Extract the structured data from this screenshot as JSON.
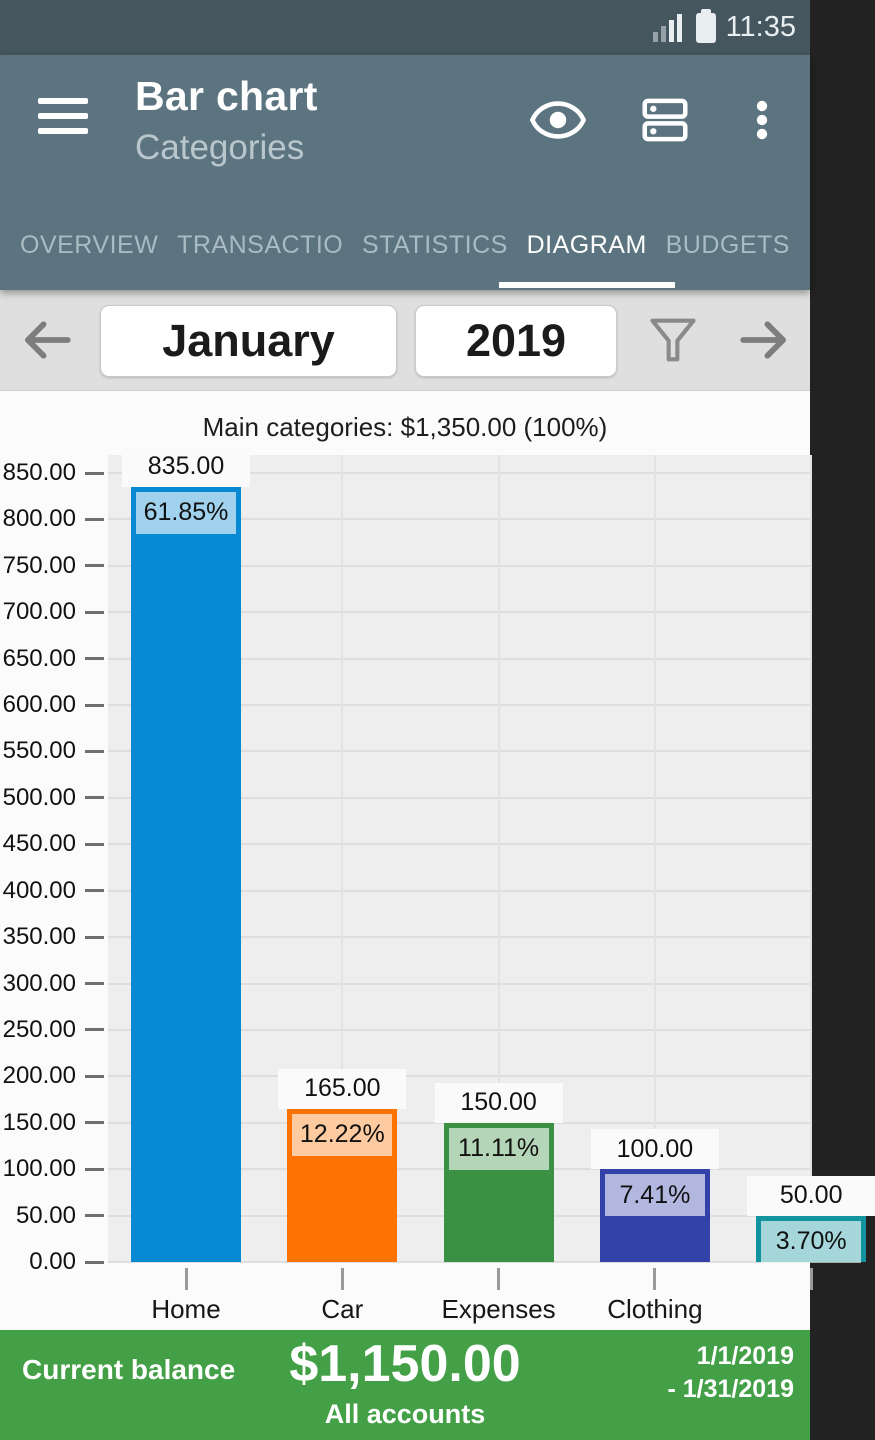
{
  "status_bar": {
    "time": "11:35"
  },
  "app_bar": {
    "title": "Bar chart",
    "subtitle": "Categories"
  },
  "icons": [
    "signal-icon",
    "battery-icon",
    "menu-icon",
    "eye-icon",
    "accounts-icon",
    "overflow-menu-icon",
    "prev-arrow-icon",
    "next-arrow-icon",
    "filter-icon"
  ],
  "tabs": [
    {
      "label": "OVERVIEW",
      "active": false
    },
    {
      "label": "TRANSACTIO",
      "active": false
    },
    {
      "label": "STATISTICS",
      "active": false
    },
    {
      "label": "DIAGRAM",
      "active": true
    },
    {
      "label": "BUDGETS",
      "active": false
    }
  ],
  "period_nav": {
    "month": "January",
    "year": "2019"
  },
  "chart_data": {
    "type": "bar",
    "title": "Main categories: $1,350.00 (100%)",
    "total": "$1,350.00 (100%)",
    "categories": [
      "Home",
      "Car",
      "Expenses",
      "Clothing",
      ""
    ],
    "series": [
      {
        "name": "Main categories",
        "values": [
          835,
          165,
          150,
          100,
          50
        ]
      }
    ],
    "value_labels": [
      "835.00",
      "165.00",
      "150.00",
      "100.00",
      "50.00"
    ],
    "percent_labels": [
      "61.85%",
      "12.22%",
      "11.11%",
      "7.41%",
      "3.70%"
    ],
    "bar_colors": [
      "#078ad3",
      "#fc7303",
      "#3a9143",
      "#3242a8",
      "#12949e"
    ],
    "ylim": [
      0,
      850
    ],
    "y_tick_step": 50,
    "y_ticks": [
      "0.00",
      "50.00",
      "100.00",
      "150.00",
      "200.00",
      "250.00",
      "300.00",
      "350.00",
      "400.00",
      "450.00",
      "500.00",
      "550.00",
      "600.00",
      "650.00",
      "700.00",
      "750.00",
      "800.00",
      "850.00"
    ],
    "grid": true,
    "legend": false
  },
  "footer": {
    "label": "Current balance",
    "amount": "$1,150.00",
    "accounts": "All accounts",
    "date_from": "1/1/2019",
    "date_to": "- 1/31/2019"
  },
  "colors": {
    "status_bar": "#45565f",
    "app_bar": "#5b747f",
    "tab_inactive": "#a9bbc3",
    "tab_active": "#ffffff",
    "nav_bg": "#dfdfdf",
    "plot_bg": "#eeeeee",
    "footer_bg": "#43a047"
  }
}
